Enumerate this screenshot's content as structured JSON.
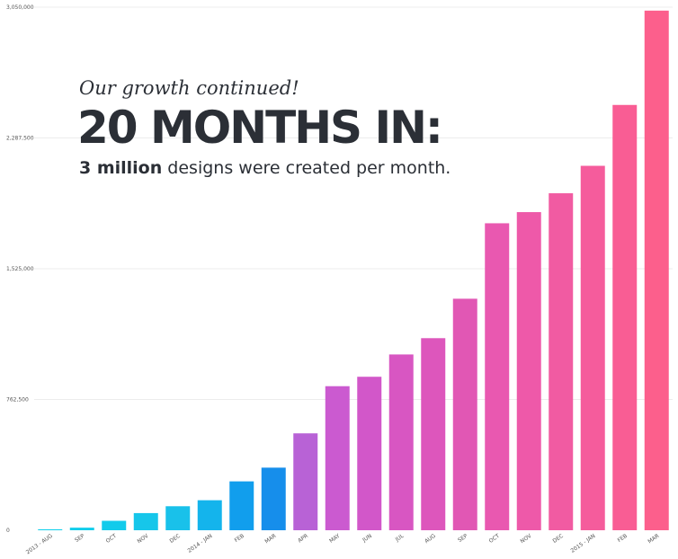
{
  "headline": {
    "kicker": "Our growth continued!",
    "title": "20 MONTHS IN:",
    "subtitle_bold": "3 million",
    "subtitle_rest": " designs were created per month."
  },
  "chart_data": {
    "type": "bar",
    "title": "20 MONTHS IN:",
    "xlabel": "",
    "ylabel": "",
    "ylim": [
      0,
      3050000
    ],
    "yticks": [
      0,
      762500,
      1525000,
      2287500,
      3050000
    ],
    "ytick_labels": [
      "0",
      "762,500",
      "1,525,000",
      "2,287,500",
      "3,050,000"
    ],
    "grid": true,
    "categories": [
      "2013 - AUG",
      "SEP",
      "OCT",
      "NOV",
      "DEC",
      "2014 - JAN",
      "FEB",
      "MAR",
      "APR",
      "MAY",
      "JUN",
      "JUL",
      "AUG",
      "SEP",
      "OCT",
      "NOV",
      "DEC",
      "2015 - JAN",
      "FEB",
      "MAR"
    ],
    "values": [
      5000,
      15000,
      55000,
      100000,
      140000,
      175000,
      285000,
      365000,
      565000,
      840000,
      895000,
      1025000,
      1120000,
      1350000,
      1790000,
      1855000,
      1965000,
      2125000,
      2480000,
      3030000
    ],
    "colors": [
      "#0fd0ec",
      "#10cdeb",
      "#12cbeb",
      "#16c6ea",
      "#19c1ea",
      "#14b4ec",
      "#119eed",
      "#168eeb",
      "#b862d6",
      "#cb5ad0",
      "#d257c9",
      "#d856c2",
      "#dd56bc",
      "#e157b4",
      "#e958b0",
      "#ee59a9",
      "#f15ba2",
      "#f55c9c",
      "#f95d94",
      "#fc5f8c"
    ]
  }
}
